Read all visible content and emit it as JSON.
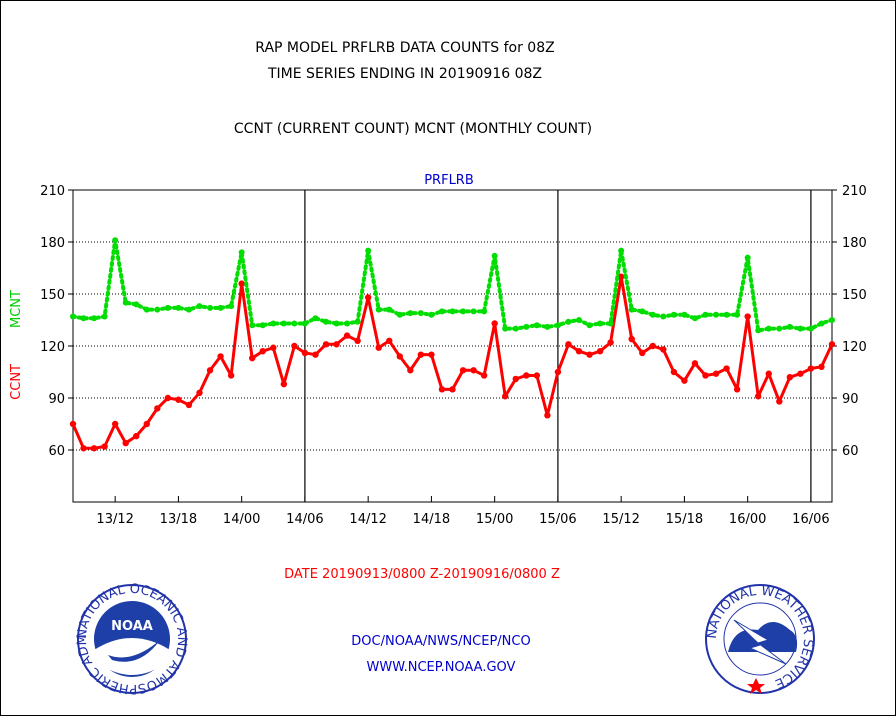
{
  "header": {
    "line1": "RAP MODEL PRFLRB DATA COUNTS for 08Z",
    "line2": "TIME SERIES ENDING IN 20190916 08Z",
    "line3": "CCNT (CURRENT COUNT) MCNT (MONTHLY COUNT)"
  },
  "chart_data": {
    "type": "line",
    "title": "PRFLRB",
    "ylabel_ccnt": "CCNT",
    "ylabel_mcnt": "MCNT",
    "ylim": [
      30,
      210
    ],
    "yticks": [
      60,
      90,
      120,
      150,
      180,
      210
    ],
    "xticks": [
      {
        "label": "13/12",
        "hour": 4
      },
      {
        "label": "13/18",
        "hour": 10
      },
      {
        "label": "14/00",
        "hour": 16
      },
      {
        "label": "14/06",
        "hour": 22
      },
      {
        "label": "14/12",
        "hour": 28
      },
      {
        "label": "14/18",
        "hour": 34
      },
      {
        "label": "15/00",
        "hour": 40
      },
      {
        "label": "15/06",
        "hour": 46
      },
      {
        "label": "15/12",
        "hour": 52
      },
      {
        "label": "15/18",
        "hour": 58
      },
      {
        "label": "16/00",
        "hour": 64
      },
      {
        "label": "16/06",
        "hour": 70
      }
    ],
    "x_hours": [
      0,
      1,
      2,
      3,
      4,
      5,
      6,
      7,
      8,
      9,
      10,
      11,
      12,
      13,
      14,
      15,
      16,
      17,
      18,
      19,
      20,
      21,
      22,
      23,
      24,
      25,
      26,
      27,
      28,
      29,
      30,
      31,
      32,
      33,
      34,
      35,
      36,
      37,
      38,
      39,
      40,
      41,
      42,
      43,
      44,
      45,
      46,
      47,
      48,
      49,
      50,
      51,
      52,
      53,
      54,
      55,
      56,
      57,
      58,
      59,
      60,
      61,
      62,
      63,
      64,
      65,
      66,
      67,
      68,
      69,
      70,
      71,
      72
    ],
    "series": [
      {
        "name": "CCNT",
        "color": "#ff0000",
        "style": "solid",
        "values": [
          75,
          61,
          61,
          62,
          75,
          64,
          68,
          75,
          84,
          90,
          89,
          86,
          93,
          106,
          114,
          103,
          156,
          113,
          117,
          119,
          98,
          120,
          116,
          115,
          121,
          121,
          126,
          123,
          148,
          119,
          123,
          114,
          106,
          115,
          115,
          95,
          95,
          106,
          106,
          103,
          133,
          91,
          101,
          103,
          103,
          80,
          105,
          121,
          117,
          115,
          117,
          122,
          160,
          124,
          116,
          120,
          118,
          105,
          100,
          110,
          103,
          104,
          107,
          95,
          137,
          91,
          104,
          88,
          102,
          104,
          107,
          108,
          121
        ]
      },
      {
        "name": "MCNT",
        "color": "#00dd00",
        "style": "dotted",
        "values": [
          137,
          136,
          136,
          137,
          181,
          145,
          144,
          141,
          141,
          142,
          142,
          141,
          143,
          142,
          142,
          143,
          174,
          132,
          132,
          133,
          133,
          133,
          133,
          136,
          134,
          133,
          133,
          134,
          175,
          141,
          141,
          138,
          139,
          139,
          138,
          140,
          140,
          140,
          140,
          140,
          172,
          130,
          130,
          131,
          132,
          131,
          132,
          134,
          135,
          132,
          133,
          133,
          175,
          141,
          140,
          138,
          137,
          138,
          138,
          136,
          138,
          138,
          138,
          138,
          171,
          129,
          130,
          130,
          131,
          130,
          130,
          133,
          135
        ]
      }
    ],
    "date_range": "DATE 20190913/0800 Z-20190916/0800 Z",
    "series_color_hint": "#0000cc"
  },
  "footer": {
    "line1": "DOC/NOAA/NWS/NCEP/NCO",
    "line2": "WWW.NCEP.NOAA.GOV"
  },
  "logos": {
    "noaa_ring": "NATIONAL OCEANIC AND ATMOSPHERIC ADMINISTRATION · U.S. DEPARTMENT OF COMMERCE",
    "noaa_center": "NOAA",
    "nws_ring": "NATIONAL WEATHER SERVICE"
  }
}
